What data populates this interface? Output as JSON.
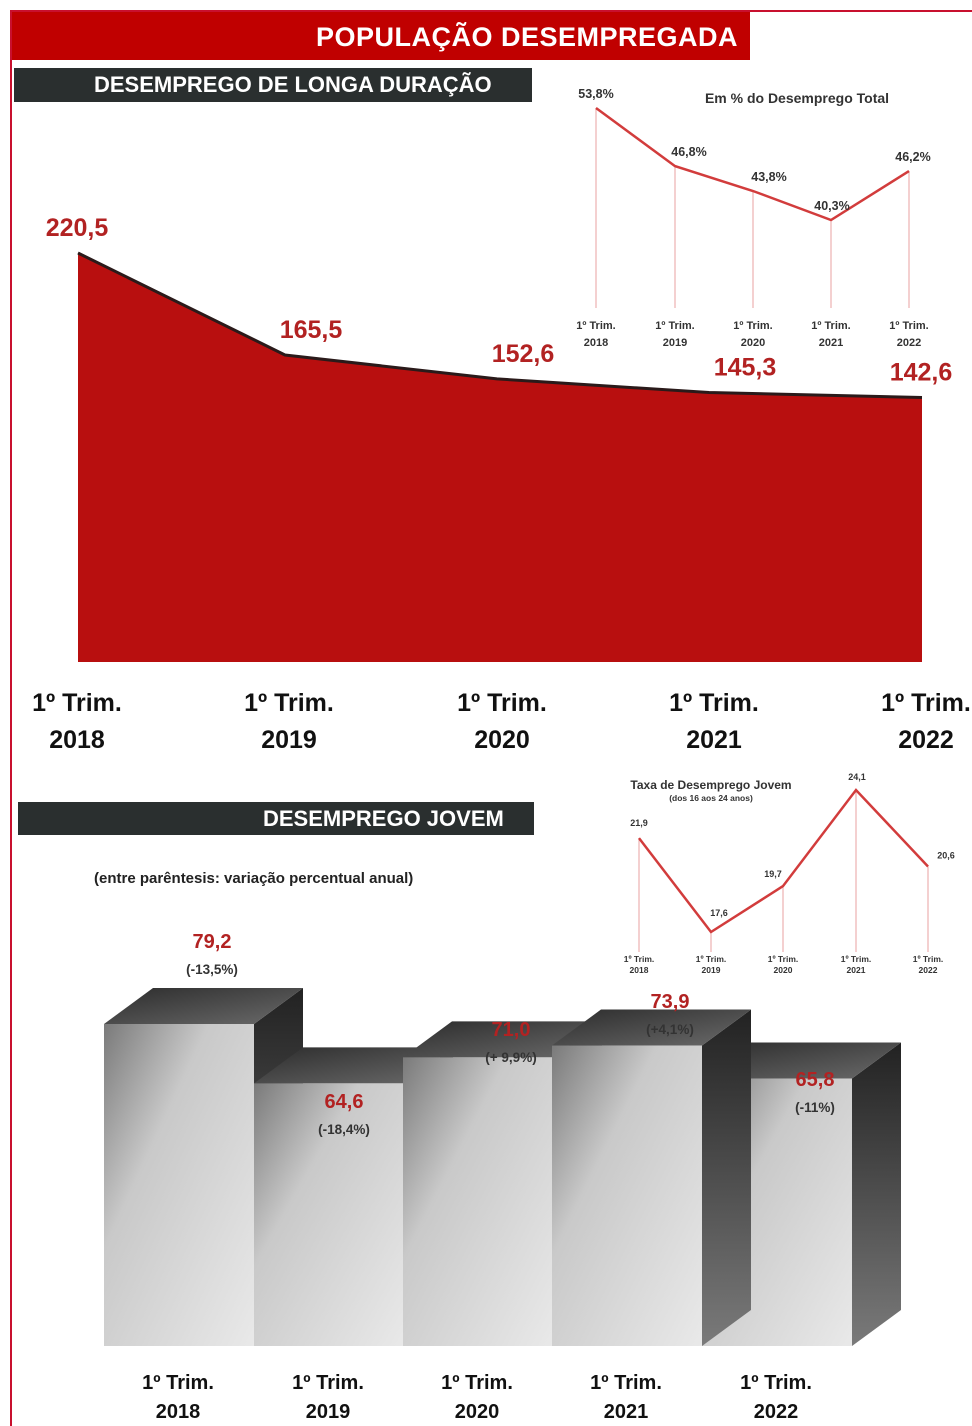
{
  "header": {
    "banner_title": "POPULAÇÃO DESEMPREGADA",
    "section1_title": "DESEMPREGO DE LONGA DURAÇÃO",
    "section2_title": "DESEMPREGO JOVEM",
    "section2_note": "(entre parêntesis: variação percentual anual)"
  },
  "colors": {
    "accent": "#c00000",
    "area": "#b80f0f",
    "line": "#d23c3c",
    "bar_dark": "#2a2f2f"
  },
  "chart_data": [
    {
      "type": "area",
      "title": "",
      "categories": [
        [
          "1º Trim.",
          "2018"
        ],
        [
          "1º Trim.",
          "2019"
        ],
        [
          "1º Trim.",
          "2020"
        ],
        [
          "1º Trim.",
          "2021"
        ],
        [
          "1º Trim.",
          "2022"
        ]
      ],
      "values": [
        220.5,
        165.5,
        152.6,
        145.3,
        142.6
      ],
      "labels": [
        "220,5",
        "165,5",
        "152,6",
        "145,3",
        "142,6"
      ],
      "ylim": [
        0,
        220.5
      ]
    },
    {
      "type": "line",
      "title": "Em % do Desemprego Total",
      "categories": [
        [
          "1º Trim.",
          "2018"
        ],
        [
          "1º Trim.",
          "2019"
        ],
        [
          "1º Trim.",
          "2020"
        ],
        [
          "1º Trim.",
          "2021"
        ],
        [
          "1º Trim.",
          "2022"
        ]
      ],
      "values": [
        53.8,
        46.8,
        43.8,
        40.3,
        46.2
      ],
      "labels": [
        "53,8%",
        "46,8%",
        "43,8%",
        "40,3%",
        "46,2%"
      ]
    },
    {
      "type": "line",
      "title": "Taxa de Desemprego Jovem",
      "subtitle": "(dos 16 aos 24 anos)",
      "categories": [
        [
          "1º Trim.",
          "2018"
        ],
        [
          "1º Trim.",
          "2019"
        ],
        [
          "1º Trim.",
          "2020"
        ],
        [
          "1º Trim.",
          "2021"
        ],
        [
          "1º Trim.",
          "2022"
        ]
      ],
      "values": [
        21.9,
        17.6,
        19.7,
        24.1,
        20.6
      ],
      "labels": [
        "21,9",
        "17,6",
        "19,7",
        "24,1",
        "20,6"
      ]
    },
    {
      "type": "bar",
      "title": "",
      "categories": [
        [
          "1º Trim.",
          "2018"
        ],
        [
          "1º Trim.",
          "2019"
        ],
        [
          "1º Trim.",
          "2020"
        ],
        [
          "1º Trim.",
          "2021"
        ],
        [
          "1º Trim.",
          "2022"
        ]
      ],
      "values": [
        79.2,
        64.6,
        71.0,
        73.9,
        65.8
      ],
      "labels": [
        "79,2",
        "64,6",
        "71,0",
        "73,9",
        "65,8"
      ],
      "changes": [
        "(-13,5%)",
        "(-18,4%)",
        "(+ 9,9%)",
        "(+4,1%)",
        "(-11%)"
      ]
    }
  ]
}
